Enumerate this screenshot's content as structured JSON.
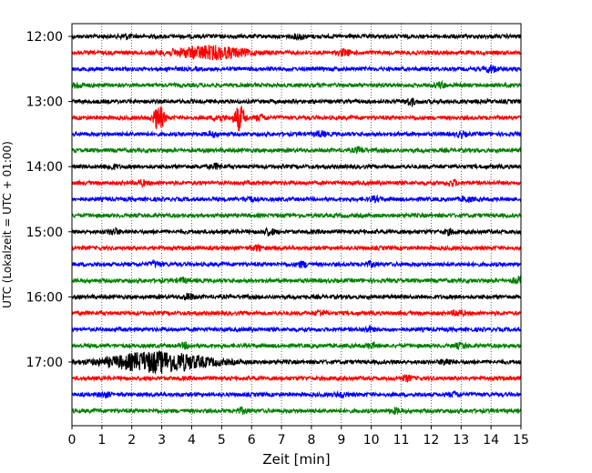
{
  "chart_data": {
    "type": "line",
    "title": "",
    "xlabel": "Zeit  [min]",
    "ylabel": "UTC (Lokalzeit = UTC + 01:00)",
    "xlim": [
      0,
      15
    ],
    "x_ticks": [
      "0",
      "1",
      "2",
      "3",
      "4",
      "5",
      "6",
      "7",
      "8",
      "9",
      "10",
      "11",
      "12",
      "13",
      "14",
      "15"
    ],
    "y_ticks": [
      "12:00",
      "13:00",
      "14:00",
      "15:00",
      "16:00",
      "17:00"
    ],
    "grid": "vertical dotted lines at each minute",
    "legend": "none",
    "trace_interval_minutes": 15,
    "trace_colors": [
      "#000000",
      "#ff0000",
      "#0000ff",
      "#008000"
    ],
    "series": [
      {
        "start": "12:00",
        "color": "#000000",
        "events": [
          {
            "t": 1.8,
            "amp": 1.0
          },
          {
            "t": 7.6,
            "amp": 1.2
          }
        ]
      },
      {
        "start": "12:15",
        "color": "#ff0000",
        "events": [
          {
            "t": 4.6,
            "amp": 3.0,
            "width": 1.2
          },
          {
            "t": 9.1,
            "amp": 1.4
          }
        ]
      },
      {
        "start": "12:30",
        "color": "#0000ff",
        "events": [
          {
            "t": 14.0,
            "amp": 1.6
          }
        ]
      },
      {
        "start": "12:45",
        "color": "#008000",
        "events": [
          {
            "t": 0.2,
            "amp": 1.2
          },
          {
            "t": 12.3,
            "amp": 1.2
          }
        ]
      },
      {
        "start": "13:00",
        "color": "#000000",
        "events": [
          {
            "t": 11.3,
            "amp": 1.5
          }
        ]
      },
      {
        "start": "13:15",
        "color": "#ff0000",
        "events": [
          {
            "t": 2.9,
            "amp": 6.0
          },
          {
            "t": 5.6,
            "amp": 6.0
          },
          {
            "t": 4.9,
            "amp": 1.4
          },
          {
            "t": 6.3,
            "amp": 1.2
          }
        ]
      },
      {
        "start": "13:30",
        "color": "#0000ff",
        "events": [
          {
            "t": 4.7,
            "amp": 1.0
          },
          {
            "t": 8.3,
            "amp": 1.1
          },
          {
            "t": 13.0,
            "amp": 1.0
          }
        ]
      },
      {
        "start": "13:45",
        "color": "#008000",
        "events": [
          {
            "t": 9.6,
            "amp": 1.2
          }
        ]
      },
      {
        "start": "14:00",
        "color": "#000000",
        "events": [
          {
            "t": 1.3,
            "amp": 1.2
          },
          {
            "t": 4.8,
            "amp": 1.0
          }
        ]
      },
      {
        "start": "14:15",
        "color": "#ff0000",
        "events": [
          {
            "t": 2.3,
            "amp": 1.1
          },
          {
            "t": 12.7,
            "amp": 1.2
          }
        ]
      },
      {
        "start": "14:30",
        "color": "#0000ff",
        "events": [
          {
            "t": 5.9,
            "amp": 1.0
          },
          {
            "t": 10.1,
            "amp": 1.0
          },
          {
            "t": 13.2,
            "amp": 1.0
          }
        ]
      },
      {
        "start": "14:45",
        "color": "#008000",
        "events": []
      },
      {
        "start": "15:00",
        "color": "#000000",
        "events": [
          {
            "t": 1.4,
            "amp": 1.2
          },
          {
            "t": 6.6,
            "amp": 1.4
          },
          {
            "t": 12.6,
            "amp": 1.0
          }
        ]
      },
      {
        "start": "15:15",
        "color": "#ff0000",
        "events": [
          {
            "t": 6.2,
            "amp": 1.1
          }
        ]
      },
      {
        "start": "15:30",
        "color": "#0000ff",
        "events": [
          {
            "t": 2.8,
            "amp": 1.2
          },
          {
            "t": 7.7,
            "amp": 1.1
          },
          {
            "t": 10.0,
            "amp": 1.0
          }
        ]
      },
      {
        "start": "15:45",
        "color": "#008000",
        "events": [
          {
            "t": 3.7,
            "amp": 1.0
          },
          {
            "t": 14.9,
            "amp": 1.4
          }
        ]
      },
      {
        "start": "16:00",
        "color": "#000000",
        "events": [
          {
            "t": 3.9,
            "amp": 1.3
          }
        ]
      },
      {
        "start": "16:15",
        "color": "#ff0000",
        "events": [
          {
            "t": 8.3,
            "amp": 1.1
          },
          {
            "t": 12.9,
            "amp": 1.3
          }
        ]
      },
      {
        "start": "16:30",
        "color": "#0000ff",
        "events": [
          {
            "t": 9.9,
            "amp": 1.1
          }
        ]
      },
      {
        "start": "16:45",
        "color": "#008000",
        "events": [
          {
            "t": 3.8,
            "amp": 1.0
          },
          {
            "t": 10.0,
            "amp": 1.0
          },
          {
            "t": 13.0,
            "amp": 1.1
          }
        ]
      },
      {
        "start": "17:00",
        "color": "#000000",
        "events": [
          {
            "t": 2.9,
            "amp": 5.0,
            "width": 1.6
          },
          {
            "t": 12.5,
            "amp": 1.4
          }
        ]
      },
      {
        "start": "17:15",
        "color": "#ff0000",
        "events": [
          {
            "t": 11.2,
            "amp": 1.1
          }
        ]
      },
      {
        "start": "17:30",
        "color": "#0000ff",
        "events": [
          {
            "t": 1.1,
            "amp": 1.0
          },
          {
            "t": 9.0,
            "amp": 1.0
          },
          {
            "t": 12.8,
            "amp": 1.0
          }
        ]
      },
      {
        "start": "17:45",
        "color": "#008000",
        "events": [
          {
            "t": 5.7,
            "amp": 1.1
          },
          {
            "t": 10.8,
            "amp": 1.0
          }
        ]
      }
    ]
  }
}
